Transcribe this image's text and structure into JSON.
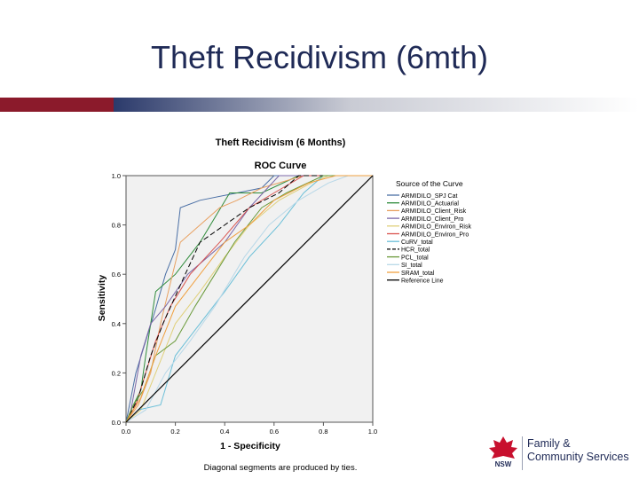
{
  "slide": {
    "title": "Theft Recidivism (6mth)"
  },
  "colors": {
    "title_text": "#1f2a56",
    "bar_left": "#8b1a2b",
    "bar_mid": "#2b3a6b",
    "plot_bg": "#f1f1f1",
    "reference_line": "#000000"
  },
  "logo": {
    "line1": "Family &",
    "line2": "Community Services",
    "small": "NSW",
    "icon": "waratah-flower-icon"
  },
  "chart_data": {
    "type": "line",
    "title": "Theft Recidivism (6 Months)",
    "subtitle": "ROC Curve",
    "xlabel": "1 - Specificity",
    "ylabel": "Sensitivity",
    "footnote": "Diagonal segments are produced by ties.",
    "xlim": [
      0,
      1
    ],
    "ylim": [
      0,
      1
    ],
    "x_ticks": [
      "0.0",
      "0.2",
      "0.4",
      "0.6",
      "0.8",
      "1.0"
    ],
    "y_ticks": [
      "0.0",
      "0.2",
      "0.4",
      "0.6",
      "0.8",
      "1.0"
    ],
    "grid": false,
    "legend_placement": "right",
    "legend_title": "Source of the Curve",
    "series": [
      {
        "name": "ARMIDILO_SPJ Cat",
        "color": "#4a6fa5",
        "dash": "",
        "points": [
          [
            0,
            0
          ],
          [
            0.02,
            0.1
          ],
          [
            0.04,
            0.2
          ],
          [
            0.08,
            0.33
          ],
          [
            0.12,
            0.46
          ],
          [
            0.16,
            0.6
          ],
          [
            0.2,
            0.7
          ],
          [
            0.22,
            0.87
          ],
          [
            0.3,
            0.9
          ],
          [
            0.45,
            0.93
          ],
          [
            0.55,
            0.95
          ],
          [
            0.6,
            1
          ],
          [
            1,
            1
          ]
        ]
      },
      {
        "name": "ARMIDILO_Actuarial",
        "color": "#2e8b3a",
        "dash": "",
        "points": [
          [
            0,
            0
          ],
          [
            0.03,
            0.07
          ],
          [
            0.06,
            0.13
          ],
          [
            0.08,
            0.27
          ],
          [
            0.1,
            0.4
          ],
          [
            0.12,
            0.53
          ],
          [
            0.2,
            0.6
          ],
          [
            0.3,
            0.73
          ],
          [
            0.42,
            0.93
          ],
          [
            0.55,
            0.93
          ],
          [
            0.7,
            1
          ],
          [
            1,
            1
          ]
        ]
      },
      {
        "name": "ARMIDILO_Client_Risk",
        "color": "#e8a060",
        "dash": "",
        "points": [
          [
            0,
            0
          ],
          [
            0.05,
            0.07
          ],
          [
            0.1,
            0.2
          ],
          [
            0.14,
            0.4
          ],
          [
            0.22,
            0.73
          ],
          [
            0.3,
            0.8
          ],
          [
            0.38,
            0.87
          ],
          [
            0.45,
            0.9
          ],
          [
            0.55,
            0.95
          ],
          [
            0.72,
            1
          ],
          [
            1,
            1
          ]
        ]
      },
      {
        "name": "ARMIDILO_Client_Pro",
        "color": "#7b68a8",
        "dash": "",
        "points": [
          [
            0,
            0
          ],
          [
            0.02,
            0.05
          ],
          [
            0.06,
            0.27
          ],
          [
            0.1,
            0.4
          ],
          [
            0.16,
            0.47
          ],
          [
            0.25,
            0.6
          ],
          [
            0.4,
            0.73
          ],
          [
            0.5,
            0.87
          ],
          [
            0.62,
            1
          ],
          [
            1,
            1
          ]
        ]
      },
      {
        "name": "ARMIDILO_Environ_Risk",
        "color": "#e0d07a",
        "dash": "",
        "points": [
          [
            0,
            0
          ],
          [
            0.06,
            0.05
          ],
          [
            0.12,
            0.2
          ],
          [
            0.2,
            0.4
          ],
          [
            0.3,
            0.53
          ],
          [
            0.4,
            0.67
          ],
          [
            0.5,
            0.8
          ],
          [
            0.62,
            0.9
          ],
          [
            0.75,
            0.97
          ],
          [
            0.82,
            1
          ],
          [
            1,
            1
          ]
        ]
      },
      {
        "name": "ARMIDILO_Environ_Pro",
        "color": "#d9534f",
        "dash": "",
        "points": [
          [
            0,
            0
          ],
          [
            0.04,
            0.07
          ],
          [
            0.08,
            0.2
          ],
          [
            0.12,
            0.33
          ],
          [
            0.18,
            0.47
          ],
          [
            0.26,
            0.6
          ],
          [
            0.38,
            0.73
          ],
          [
            0.5,
            0.87
          ],
          [
            0.6,
            0.93
          ],
          [
            0.72,
            1
          ],
          [
            1,
            1
          ]
        ]
      },
      {
        "name": "CuRV_total",
        "color": "#6bbfd8",
        "dash": "",
        "points": [
          [
            0,
            0
          ],
          [
            0.05,
            0.05
          ],
          [
            0.14,
            0.07
          ],
          [
            0.2,
            0.27
          ],
          [
            0.3,
            0.4
          ],
          [
            0.4,
            0.53
          ],
          [
            0.5,
            0.67
          ],
          [
            0.62,
            0.8
          ],
          [
            0.72,
            0.93
          ],
          [
            0.8,
            1
          ],
          [
            1,
            1
          ]
        ]
      },
      {
        "name": "HCR_total",
        "color": "#000000",
        "dash": "6,3",
        "points": [
          [
            0,
            0
          ],
          [
            0.05,
            0.1
          ],
          [
            0.1,
            0.27
          ],
          [
            0.15,
            0.4
          ],
          [
            0.24,
            0.6
          ],
          [
            0.3,
            0.73
          ],
          [
            0.4,
            0.8
          ],
          [
            0.5,
            0.87
          ],
          [
            0.62,
            0.93
          ],
          [
            0.7,
            1
          ],
          [
            1,
            1
          ]
        ]
      },
      {
        "name": "PCL_total",
        "color": "#6a9a3a",
        "dash": "",
        "points": [
          [
            0,
            0
          ],
          [
            0.03,
            0.07
          ],
          [
            0.07,
            0.13
          ],
          [
            0.12,
            0.27
          ],
          [
            0.2,
            0.33
          ],
          [
            0.28,
            0.47
          ],
          [
            0.36,
            0.6
          ],
          [
            0.44,
            0.73
          ],
          [
            0.55,
            0.87
          ],
          [
            0.65,
            0.93
          ],
          [
            0.8,
            1
          ],
          [
            1,
            1
          ]
        ]
      },
      {
        "name": "SI_total",
        "color": "#b8d8e8",
        "dash": "",
        "points": [
          [
            0,
            0
          ],
          [
            0.08,
            0.05
          ],
          [
            0.16,
            0.2
          ],
          [
            0.26,
            0.33
          ],
          [
            0.36,
            0.47
          ],
          [
            0.48,
            0.67
          ],
          [
            0.58,
            0.8
          ],
          [
            0.7,
            0.9
          ],
          [
            0.82,
            0.97
          ],
          [
            0.9,
            1
          ],
          [
            1,
            1
          ]
        ]
      },
      {
        "name": "SRAM_total",
        "color": "#f0a040",
        "dash": "",
        "points": [
          [
            0,
            0
          ],
          [
            0.06,
            0.1
          ],
          [
            0.12,
            0.27
          ],
          [
            0.2,
            0.47
          ],
          [
            0.3,
            0.6
          ],
          [
            0.4,
            0.73
          ],
          [
            0.5,
            0.8
          ],
          [
            0.6,
            0.9
          ],
          [
            0.74,
            0.97
          ],
          [
            0.85,
            1
          ],
          [
            1,
            1
          ]
        ]
      },
      {
        "name": "Reference Line",
        "color": "#000000",
        "dash": "",
        "points": [
          [
            0,
            0
          ],
          [
            1,
            1
          ]
        ]
      }
    ]
  }
}
